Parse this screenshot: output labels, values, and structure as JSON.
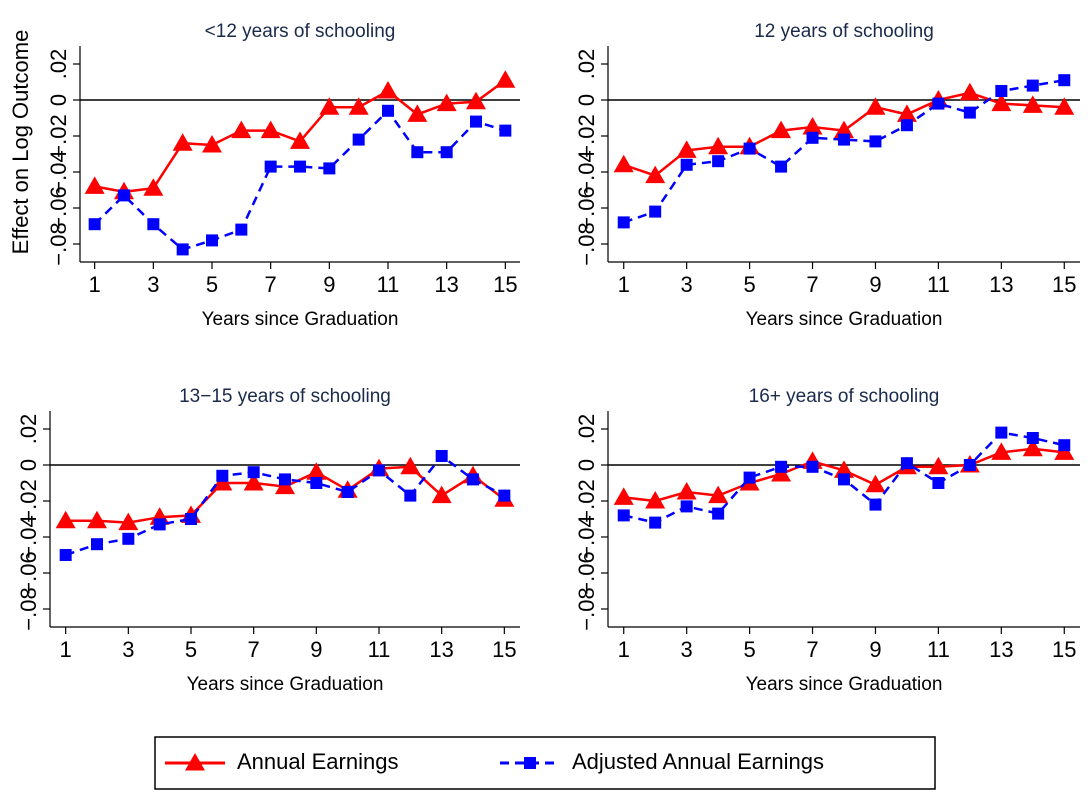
{
  "chart_data": [
    {
      "type": "line",
      "title": "<12 years of schooling",
      "ylabel": "Effect on Log Outcome",
      "xlabel": "Years since Graduation",
      "x": [
        1,
        2,
        3,
        4,
        5,
        6,
        7,
        8,
        9,
        10,
        11,
        12,
        13,
        14,
        15
      ],
      "series": [
        {
          "values": [
            -0.048,
            -0.051,
            -0.049,
            -0.024,
            -0.025,
            -0.017,
            -0.017,
            -0.023,
            -0.004,
            -0.004,
            0.005,
            -0.008,
            -0.002,
            -0.001,
            0.011
          ]
        },
        {
          "values": [
            -0.069,
            -0.053,
            -0.069,
            -0.083,
            -0.078,
            -0.072,
            -0.037,
            -0.037,
            -0.038,
            -0.022,
            -0.006,
            -0.029,
            -0.029,
            -0.012,
            -0.017
          ]
        }
      ],
      "xlim": [
        0.5,
        15.5
      ],
      "xticks": [
        1,
        3,
        5,
        7,
        9,
        11,
        13,
        15
      ],
      "ylim": [
        -0.09,
        0.03
      ],
      "yticks": [
        {
          "value": -0.08,
          "label": "−.08"
        },
        {
          "value": -0.06,
          "label": "−.06"
        },
        {
          "value": -0.04,
          "label": "−.04"
        },
        {
          "value": -0.02,
          "label": "−.02"
        },
        0,
        {
          "value": 0.02,
          "label": ".02"
        }
      ],
      "yline": 0
    },
    {
      "type": "line",
      "title": "12 years of schooling",
      "xlabel": "Years since Graduation",
      "x": [
        1,
        2,
        3,
        4,
        5,
        6,
        7,
        8,
        9,
        10,
        11,
        12,
        13,
        14,
        15
      ],
      "series": [
        {
          "values": [
            -0.036,
            -0.042,
            -0.028,
            -0.026,
            -0.026,
            -0.017,
            -0.015,
            -0.017,
            -0.004,
            -0.008,
            0,
            0.004,
            -0.002,
            -0.003,
            -0.004
          ]
        },
        {
          "values": [
            -0.068,
            -0.062,
            -0.036,
            -0.034,
            -0.027,
            -0.037,
            -0.021,
            -0.022,
            -0.023,
            -0.014,
            -0.002,
            -0.007,
            0.005,
            0.008,
            0.011
          ]
        }
      ],
      "xlim": [
        0.5,
        15.5
      ],
      "xticks": [
        1,
        3,
        5,
        7,
        9,
        11,
        13,
        15
      ],
      "ylim": [
        -0.09,
        0.03
      ],
      "yticks": [
        {
          "value": -0.08,
          "label": "−.08"
        },
        {
          "value": -0.06,
          "label": "−.06"
        },
        {
          "value": -0.04,
          "label": "−.04"
        },
        {
          "value": -0.02,
          "label": "−.02"
        },
        0,
        {
          "value": 0.02,
          "label": ".02"
        }
      ],
      "yline": 0
    },
    {
      "type": "line",
      "title": "13−15 years of schooling",
      "xlabel": "Years since Graduation",
      "x": [
        1,
        2,
        3,
        4,
        5,
        6,
        7,
        8,
        9,
        10,
        11,
        12,
        13,
        14,
        15
      ],
      "series": [
        {
          "values": [
            -0.031,
            -0.031,
            -0.032,
            -0.029,
            -0.028,
            -0.01,
            -0.01,
            -0.012,
            -0.004,
            -0.014,
            -0.002,
            -0.001,
            -0.017,
            -0.006,
            -0.019
          ]
        },
        {
          "values": [
            -0.05,
            -0.044,
            -0.041,
            -0.033,
            -0.03,
            -0.006,
            -0.004,
            -0.008,
            -0.01,
            -0.015,
            -0.003,
            -0.017,
            0.005,
            -0.008,
            -0.017
          ]
        }
      ],
      "xlim": [
        0.5,
        15.5
      ],
      "xticks": [
        1,
        3,
        5,
        7,
        9,
        11,
        13,
        15
      ],
      "ylim": [
        -0.09,
        0.03
      ],
      "yticks": [
        {
          "value": -0.08,
          "label": "−.08"
        },
        {
          "value": -0.06,
          "label": "−.06"
        },
        {
          "value": -0.04,
          "label": "−.04"
        },
        {
          "value": -0.02,
          "label": "−.02"
        },
        0,
        {
          "value": 0.02,
          "label": ".02"
        }
      ],
      "yline": 0
    },
    {
      "type": "line",
      "title": "16+ years of schooling",
      "xlabel": "Years since Graduation",
      "x": [
        1,
        2,
        3,
        4,
        5,
        6,
        7,
        8,
        9,
        10,
        11,
        12,
        13,
        14,
        15
      ],
      "series": [
        {
          "values": [
            -0.018,
            -0.02,
            -0.015,
            -0.017,
            -0.01,
            -0.005,
            0.002,
            -0.003,
            -0.011,
            -0.001,
            -0.001,
            0,
            0.007,
            0.009,
            0.007
          ]
        },
        {
          "values": [
            -0.028,
            -0.032,
            -0.023,
            -0.027,
            -0.007,
            -0.001,
            -0.001,
            -0.008,
            -0.022,
            0.001,
            -0.01,
            0,
            0.018,
            0.015,
            0.011
          ]
        }
      ],
      "xlim": [
        0.5,
        15.5
      ],
      "xticks": [
        1,
        3,
        5,
        7,
        9,
        11,
        13,
        15
      ],
      "ylim": [
        -0.09,
        0.03
      ],
      "yticks": [
        {
          "value": -0.08,
          "label": "−.08"
        },
        {
          "value": -0.06,
          "label": "−.06"
        },
        {
          "value": -0.04,
          "label": "−.04"
        },
        {
          "value": -0.02,
          "label": "−.02"
        },
        0,
        {
          "value": 0.02,
          "label": ".02"
        }
      ],
      "yline": 0
    }
  ],
  "legend": {
    "position": "bottom",
    "entries": [
      {
        "name": "Annual Earnings",
        "color": "#ff0000",
        "marker": "triangle",
        "dashed": false
      },
      {
        "name": "Adjusted Annual Earnings",
        "color": "#0000ff",
        "marker": "square",
        "dashed": true
      }
    ]
  }
}
